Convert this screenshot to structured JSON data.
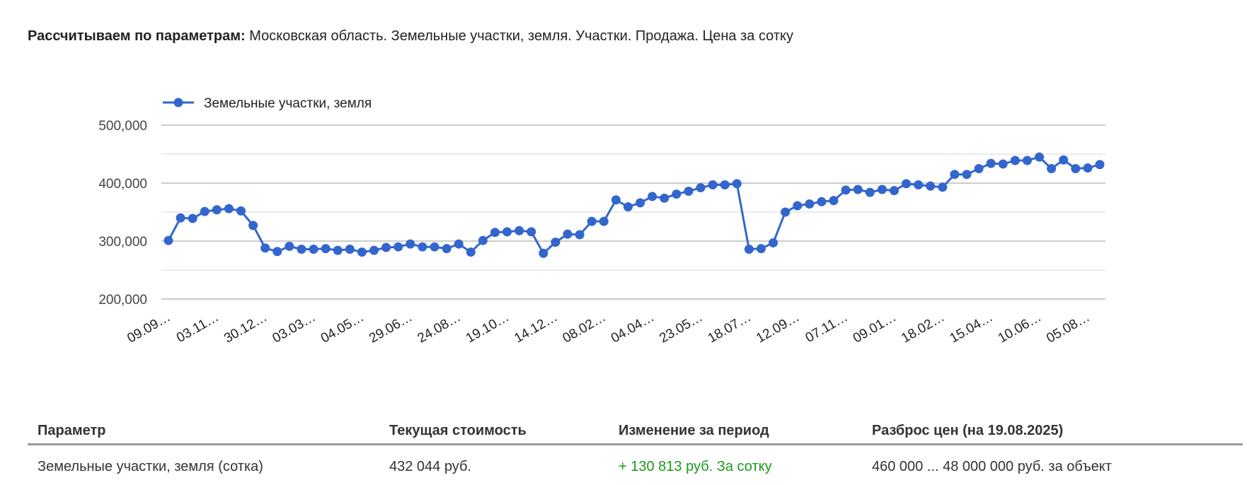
{
  "header": {
    "label": "Рассчитываем по параметрам:",
    "value": "Московская область. Земельные участки, земля. Участки. Продажа. Цена за сотку"
  },
  "chart_data": {
    "type": "line",
    "legend_position": "top-left",
    "series": [
      {
        "name": "Земельные участки, земля",
        "color": "#3366cc",
        "values": [
          301000,
          340000,
          339000,
          351000,
          354000,
          356000,
          352000,
          327000,
          288000,
          282000,
          291000,
          286000,
          286000,
          287000,
          284000,
          286000,
          281000,
          284000,
          289000,
          290000,
          295000,
          290000,
          290000,
          287000,
          295000,
          281000,
          301000,
          315000,
          316000,
          318000,
          316000,
          279000,
          298000,
          312000,
          311000,
          334000,
          334000,
          371000,
          359000,
          366000,
          377000,
          374000,
          381000,
          386000,
          392000,
          397000,
          397000,
          399000,
          286000,
          287000,
          297000,
          350000,
          361000,
          364000,
          368000,
          370000,
          388000,
          389000,
          384000,
          389000,
          387000,
          399000,
          397000,
          395000,
          393000,
          415000,
          415000,
          425000,
          434000,
          433000,
          439000,
          439000,
          445000,
          425000,
          440000,
          425000,
          426000,
          432044
        ]
      }
    ],
    "x_tick_labels": [
      "09.09…",
      "03.11…",
      "30.12…",
      "03.03…",
      "04.05…",
      "29.06…",
      "24.08…",
      "19.10…",
      "14.12…",
      "08.02…",
      "04.04…",
      "23.05…",
      "18.07…",
      "12.09…",
      "07.11…",
      "09.01…",
      "18.02…",
      "15.04…",
      "10.06…",
      "05.08…"
    ],
    "x_tick_every": 4,
    "y_ticks": [
      "200,000",
      "300,000",
      "400,000",
      "500,000"
    ],
    "ylim": [
      200000,
      500000
    ],
    "grid": true
  },
  "table": {
    "headers": [
      "Параметр",
      "Текущая стоимость",
      "Изменение за период",
      "Разброс цен (на 19.08.2025)"
    ],
    "rows": [
      [
        "Земельные участки, земля (сотка)",
        "432 044 руб.",
        "+ 130 813 руб. За сотку",
        "460 000 ... 48 000 000 руб. за объект"
      ]
    ],
    "change_color": "#1a9a1a"
  }
}
